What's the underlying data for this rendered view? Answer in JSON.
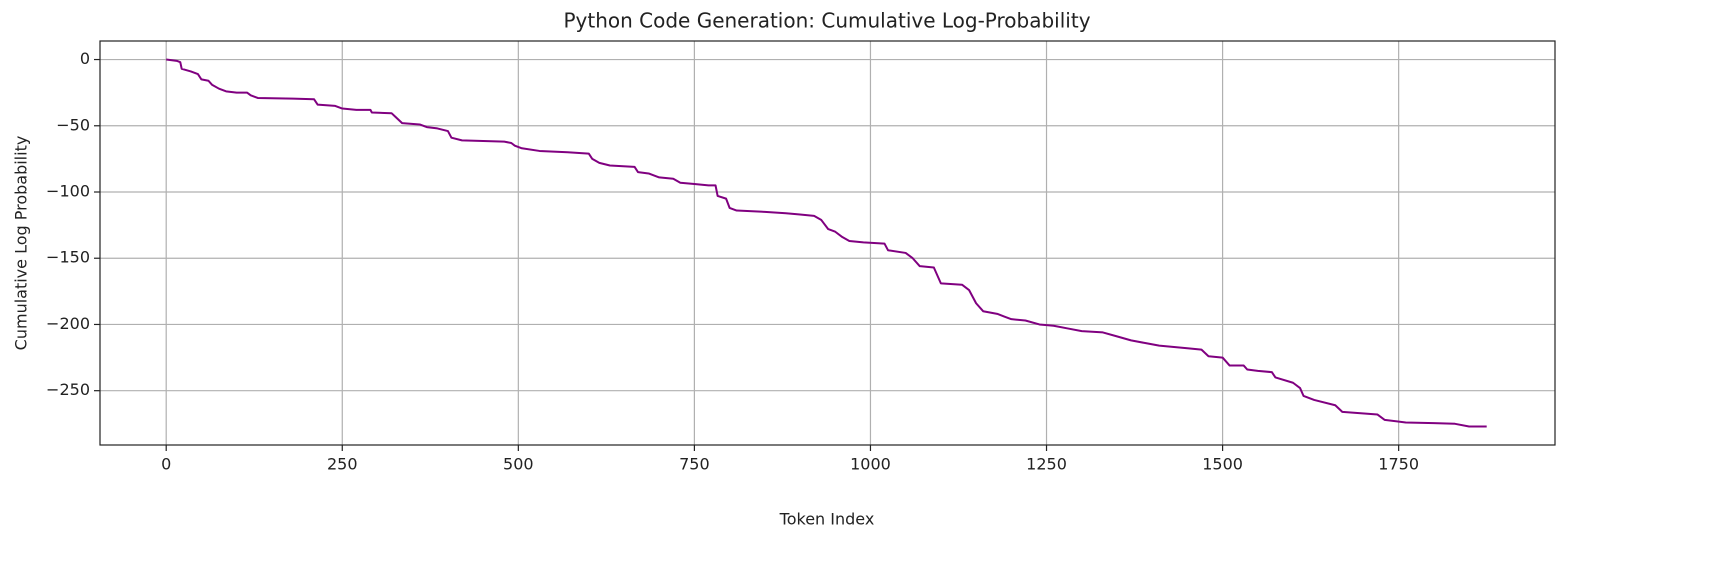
{
  "chart_data": {
    "type": "line",
    "title": "Python Code Generation: Cumulative Log-Probability",
    "xlabel": "Token Index",
    "ylabel": "Cumulative Log Probability",
    "xlim": [
      -94,
      1972
    ],
    "ylim": [
      -291,
      14
    ],
    "xticks": [
      0,
      250,
      500,
      750,
      1000,
      1250,
      1500,
      1750
    ],
    "yticks": [
      0,
      {
        "value": -50,
        "label": "−50"
      },
      {
        "value": -100,
        "label": "−100"
      },
      {
        "value": -150,
        "label": "−150"
      },
      {
        "value": -200,
        "label": "−200"
      },
      {
        "value": -250,
        "label": "−250"
      }
    ],
    "grid": true,
    "series": [
      {
        "color": "#800080",
        "x": [
          0,
          15,
          20,
          22,
          35,
          45,
          50,
          60,
          65,
          75,
          85,
          100,
          115,
          120,
          130,
          180,
          210,
          215,
          240,
          250,
          270,
          290,
          292,
          320,
          325,
          335,
          360,
          370,
          385,
          400,
          405,
          420,
          450,
          480,
          490,
          495,
          505,
          530,
          570,
          600,
          605,
          615,
          630,
          665,
          670,
          685,
          700,
          720,
          730,
          750,
          770,
          780,
          783,
          795,
          800,
          810,
          850,
          880,
          900,
          920,
          930,
          940,
          950,
          960,
          970,
          990,
          1020,
          1025,
          1050,
          1060,
          1070,
          1090,
          1100,
          1130,
          1140,
          1150,
          1160,
          1180,
          1190,
          1200,
          1220,
          1240,
          1260,
          1280,
          1300,
          1330,
          1350,
          1370,
          1390,
          1410,
          1450,
          1470,
          1480,
          1500,
          1510,
          1530,
          1535,
          1550,
          1570,
          1575,
          1600,
          1610,
          1615,
          1630,
          1660,
          1670,
          1720,
          1730,
          1760,
          1800,
          1830,
          1850,
          1875
        ],
        "values": [
          0,
          -1,
          -2,
          -7,
          -9,
          -11,
          -15,
          -16,
          -19,
          -22,
          -24,
          -25,
          -25,
          -27,
          -29,
          -29.5,
          -30,
          -34,
          -35,
          -37,
          -38,
          -38,
          -40,
          -40.5,
          -43,
          -48,
          -49,
          -51,
          -52,
          -54,
          -59,
          -61,
          -61.5,
          -62,
          -63,
          -65,
          -67,
          -69,
          -70,
          -71,
          -75,
          -78,
          -80,
          -81,
          -85,
          -86,
          -89,
          -90,
          -93,
          -94,
          -95,
          -95,
          -103,
          -105,
          -112,
          -114,
          -115,
          -116,
          -117,
          -118,
          -121,
          -128,
          -130,
          -134,
          -137,
          -138,
          -139,
          -144,
          -146,
          -150,
          -156,
          -157,
          -169,
          -170,
          -174,
          -184,
          -190,
          -192,
          -194,
          -196,
          -197,
          -200,
          -201,
          -203,
          -205,
          -206,
          -209,
          -212,
          -214,
          -216,
          -218,
          -219,
          -224,
          -225,
          -231,
          -231,
          -234,
          -235,
          -236,
          -240,
          -244,
          -248,
          -254,
          -257,
          -261,
          -266,
          -268,
          -272,
          -274,
          -274.5,
          -275,
          -277,
          -277
        ]
      }
    ]
  }
}
